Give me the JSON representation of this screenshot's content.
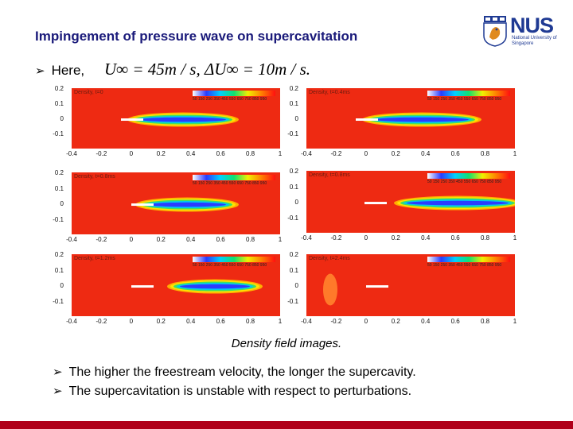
{
  "title": "Impingement of pressure wave on supercavitation",
  "logo": {
    "text": "NUS",
    "subtext": "National University of Singapore"
  },
  "intro": {
    "label": "Here,",
    "formula": "U∞ = 45m / s,  ΔU∞ = 10m / s."
  },
  "panels": [
    {
      "id": "p1",
      "title": "Density, t=0",
      "yticks": [
        "0.2",
        "0.1",
        "0",
        "-0.1"
      ],
      "xticks": [
        "-0.4",
        "-0.2",
        "0",
        "0.2",
        "0.4",
        "0.6",
        "0.8",
        "1"
      ]
    },
    {
      "id": "p2",
      "title": "Density, t=0.4ms",
      "yticks": [
        "0.2",
        "0.1",
        "0",
        "-0.1"
      ],
      "xticks": [
        "-0.4",
        "-0.2",
        "0",
        "0.2",
        "0.4",
        "0.6",
        "0.8",
        "1"
      ]
    },
    {
      "id": "p3",
      "title": "Density, t=0.8ms",
      "yticks": [
        "0.2",
        "0.1",
        "0",
        "-0.1"
      ],
      "xticks": [
        "-0.4",
        "-0.2",
        "0",
        "0.2",
        "0.4",
        "0.6",
        "0.8",
        "1"
      ]
    },
    {
      "id": "p4",
      "title": "Density, t=0.8ms",
      "yticks": [
        "0.2",
        "0.1",
        "0",
        "-0.1"
      ],
      "xticks": [
        "-0.4",
        "-0.2",
        "0",
        "0.2",
        "0.4",
        "0.6",
        "0.8",
        "1"
      ]
    },
    {
      "id": "p5",
      "title": "Density, t=1.2ms",
      "yticks": [
        "0.2",
        "0.1",
        "0",
        "-0.1"
      ],
      "xticks": [
        "-0.4",
        "-0.2",
        "0",
        "0.2",
        "0.4",
        "0.6",
        "0.8",
        "1"
      ]
    },
    {
      "id": "p6",
      "title": "Density, t=2.4ms",
      "yticks": [
        "0.2",
        "0.1",
        "0",
        "-0.1"
      ],
      "xticks": [
        "-0.4",
        "-0.2",
        "0",
        "0.2",
        "0.4",
        "0.6",
        "0.8",
        "1"
      ]
    }
  ],
  "colorbar_ticks": "50 150 250 350 450 550 650 750 850 950",
  "caption": "Density field images.",
  "bullets": [
    "The higher the freestream velocity, the longer the supercavity.",
    "The supercavitation is unstable with respect to perturbations."
  ],
  "colors": {
    "title": "#1a1a7a",
    "field": "#ee2a12",
    "footer_bar": "#b0001a",
    "nus_blue": "#1f3a93"
  }
}
